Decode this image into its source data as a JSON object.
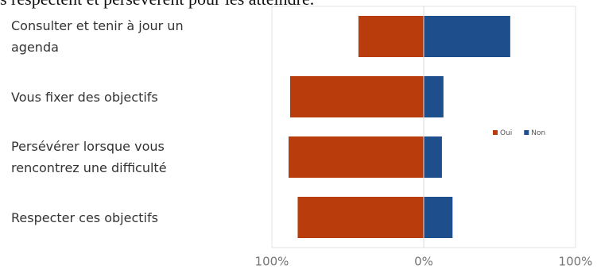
{
  "header_text": "s respectent et persévèrent pour les atteindre.",
  "chart_data": {
    "type": "diverging-bar",
    "categories": [
      "Consulter et tenir à jour un agenda",
      "Vous fixer des objectifs",
      "Persévérer lorsque vous rencontrez une difficulté",
      "Respecter ces objectifs"
    ],
    "series": [
      {
        "name": "Oui",
        "color": "#b83c0c",
        "values": [
          -43,
          -88,
          -89,
          -83
        ]
      },
      {
        "name": "Non",
        "color": "#1f4e8c",
        "values": [
          57,
          13,
          12,
          19
        ]
      }
    ],
    "xlim": [
      -100,
      100
    ],
    "xticks": [
      {
        "value": -100,
        "label": "100%"
      },
      {
        "value": 0,
        "label": "0%"
      },
      {
        "value": 100,
        "label": "100%"
      }
    ],
    "legend": "right"
  }
}
